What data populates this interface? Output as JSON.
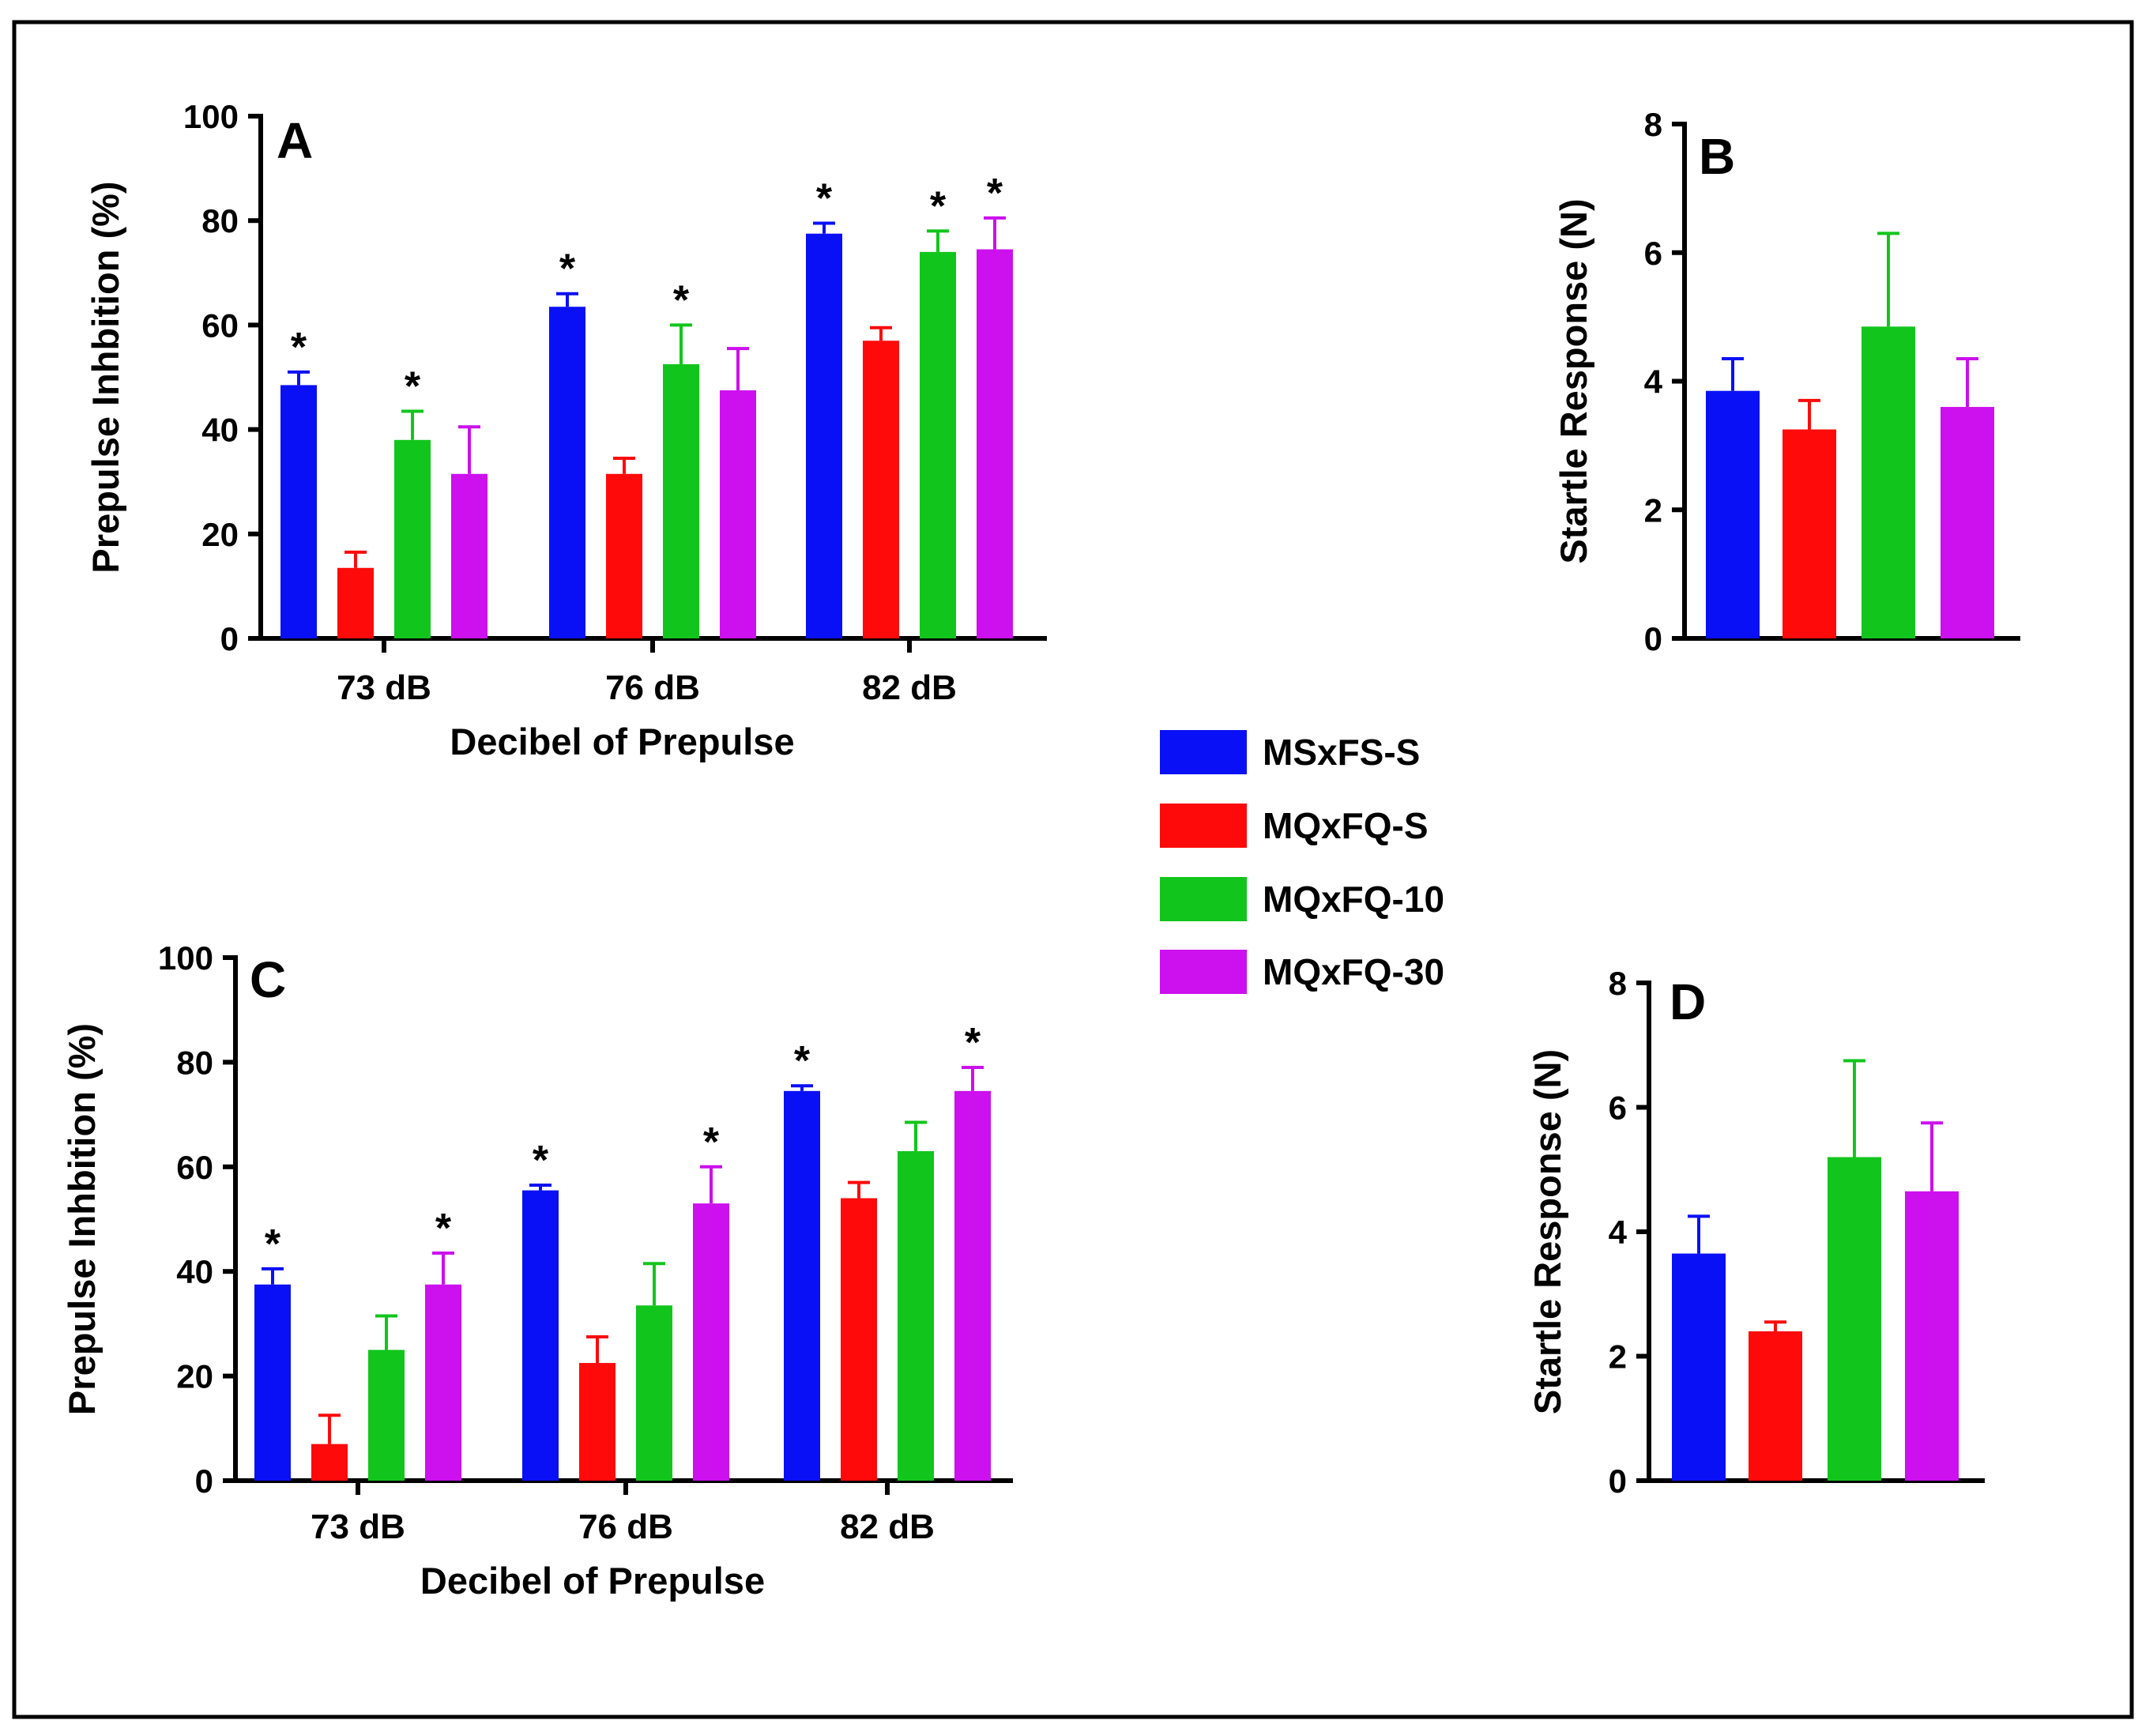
{
  "series_colors": {
    "MSxFS-S": "#0a10f5",
    "MQxFQ-S": "#ff0a0a",
    "MQxFQ-10": "#12c51c",
    "MQxFQ-30": "#cc10ee"
  },
  "legend": [
    "MSxFS-S",
    "MQxFQ-S",
    "MQxFQ-10",
    "MQxFQ-30"
  ],
  "chart_data": [
    {
      "panel": "A",
      "type": "bar",
      "categories": [
        "73 dB",
        "76 dB",
        "82 dB"
      ],
      "xlabel": "Decibel of Prepulse",
      "ylabel": "Prepulse Inhbition (%)",
      "ylim": [
        0,
        100
      ],
      "yticks": [
        0,
        20,
        40,
        60,
        80,
        100
      ],
      "series": [
        {
          "name": "MSxFS-S",
          "values": [
            48.5,
            63.5,
            77.5
          ],
          "errors": [
            2.5,
            2.5,
            2
          ],
          "sig": [
            true,
            true,
            true
          ]
        },
        {
          "name": "MQxFQ-S",
          "values": [
            13.5,
            31.5,
            57
          ],
          "errors": [
            3,
            3,
            2.5
          ],
          "sig": [
            false,
            false,
            false
          ]
        },
        {
          "name": "MQxFQ-10",
          "values": [
            38,
            52.5,
            74
          ],
          "errors": [
            5.5,
            7.5,
            4
          ],
          "sig": [
            true,
            true,
            true
          ]
        },
        {
          "name": "MQxFQ-30",
          "values": [
            31.5,
            47.5,
            74.5
          ],
          "errors": [
            9,
            8,
            6
          ],
          "sig": [
            false,
            false,
            true
          ]
        }
      ]
    },
    {
      "panel": "B",
      "type": "bar",
      "categories": [
        "MSxFS-S",
        "MQxFQ-S",
        "MQxFQ-10",
        "MQxFQ-30"
      ],
      "xlabel": "",
      "ylabel": "Startle Response (N)",
      "ylim": [
        0,
        8
      ],
      "yticks": [
        0,
        2,
        4,
        6,
        8
      ],
      "values": [
        3.85,
        3.25,
        4.85,
        3.6
      ],
      "errors": [
        0.5,
        0.45,
        1.45,
        0.75
      ]
    },
    {
      "panel": "C",
      "type": "bar",
      "categories": [
        "73 dB",
        "76 dB",
        "82 dB"
      ],
      "xlabel": "Decibel of Prepulse",
      "ylabel": "Prepulse Inhbition (%)",
      "ylim": [
        0,
        100
      ],
      "yticks": [
        0,
        20,
        40,
        60,
        80,
        100
      ],
      "series": [
        {
          "name": "MSxFS-S",
          "values": [
            37.5,
            55.5,
            74.5
          ],
          "errors": [
            3,
            1,
            1
          ],
          "sig": [
            true,
            true,
            true
          ]
        },
        {
          "name": "MQxFQ-S",
          "values": [
            7,
            22.5,
            54
          ],
          "errors": [
            5.5,
            5,
            3
          ],
          "sig": [
            false,
            false,
            false
          ]
        },
        {
          "name": "MQxFQ-10",
          "values": [
            25,
            33.5,
            63
          ],
          "errors": [
            6.5,
            8,
            5.5
          ],
          "sig": [
            false,
            false,
            false
          ]
        },
        {
          "name": "MQxFQ-30",
          "values": [
            37.5,
            53,
            74.5
          ],
          "errors": [
            6,
            7,
            4.5
          ],
          "sig": [
            true,
            true,
            true
          ]
        }
      ]
    },
    {
      "panel": "D",
      "type": "bar",
      "categories": [
        "MSxFS-S",
        "MQxFQ-S",
        "MQxFQ-10",
        "MQxFQ-30"
      ],
      "xlabel": "",
      "ylabel": "Startle Response (N)",
      "ylim": [
        0,
        8
      ],
      "yticks": [
        0,
        2,
        4,
        6,
        8
      ],
      "values": [
        3.65,
        2.4,
        5.2,
        4.65
      ],
      "errors": [
        0.6,
        0.15,
        1.55,
        1.1
      ]
    }
  ]
}
